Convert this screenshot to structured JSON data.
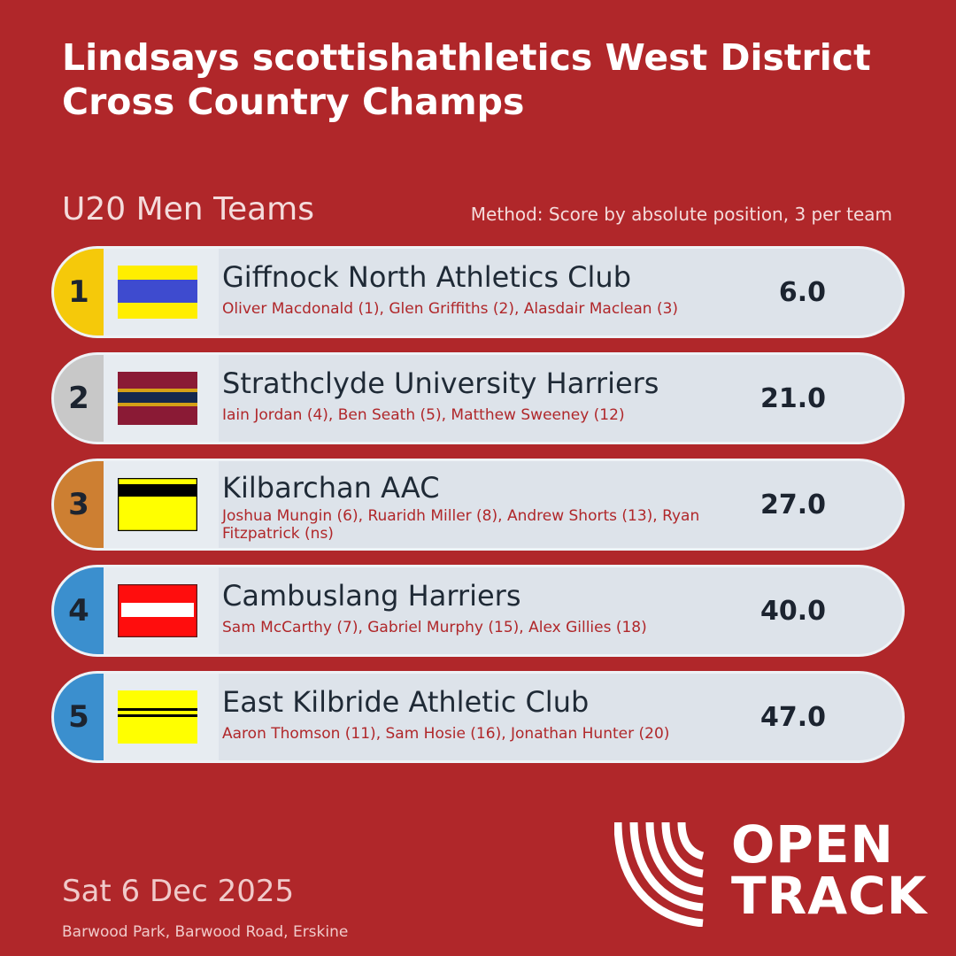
{
  "header": {
    "title": "Lindsays scottishathletics West District Cross Country Champs"
  },
  "event": {
    "category": "U20 Men Teams",
    "method": "Method: Score by absolute position, 3 per team"
  },
  "teams": [
    {
      "rank": "1",
      "name": "Giffnock North Athletics Club",
      "members": "Oliver Macdonald (1), Glen Griffiths (2), Alasdair Maclean (3)",
      "score": "6.0",
      "rank_color": "#f5c90a"
    },
    {
      "rank": "2",
      "name": "Strathclyde University Harriers",
      "members": "Iain Jordan (4), Ben Seath (5), Matthew Sweeney (12)",
      "score": "21.0",
      "rank_color": "#c8c8c8"
    },
    {
      "rank": "3",
      "name": "Kilbarchan AAC",
      "members": "Joshua Mungin (6), Ruaridh Miller (8), Andrew Shorts (13), Ryan Fitzpatrick (ns)",
      "score": "27.0",
      "rank_color": "#cd7f32"
    },
    {
      "rank": "4",
      "name": "Cambuslang Harriers",
      "members": "Sam McCarthy (7), Gabriel Murphy (15), Alex Gillies (18)",
      "score": "40.0",
      "rank_color": "#3b8fce"
    },
    {
      "rank": "5",
      "name": "East Kilbride Athletic Club",
      "members": "Aaron Thomson (11), Sam Hosie (16), Jonathan Hunter (20)",
      "score": "47.0",
      "rank_color": "#3b8fce"
    }
  ],
  "footer": {
    "date": "Sat 6 Dec 2025",
    "venue": "Barwood Park, Barwood Road, Erskine"
  },
  "logo": {
    "line1": "OPEN",
    "line2": "TRACK"
  },
  "colors": {
    "background": "#b0272a",
    "row": "#dde3ea"
  }
}
